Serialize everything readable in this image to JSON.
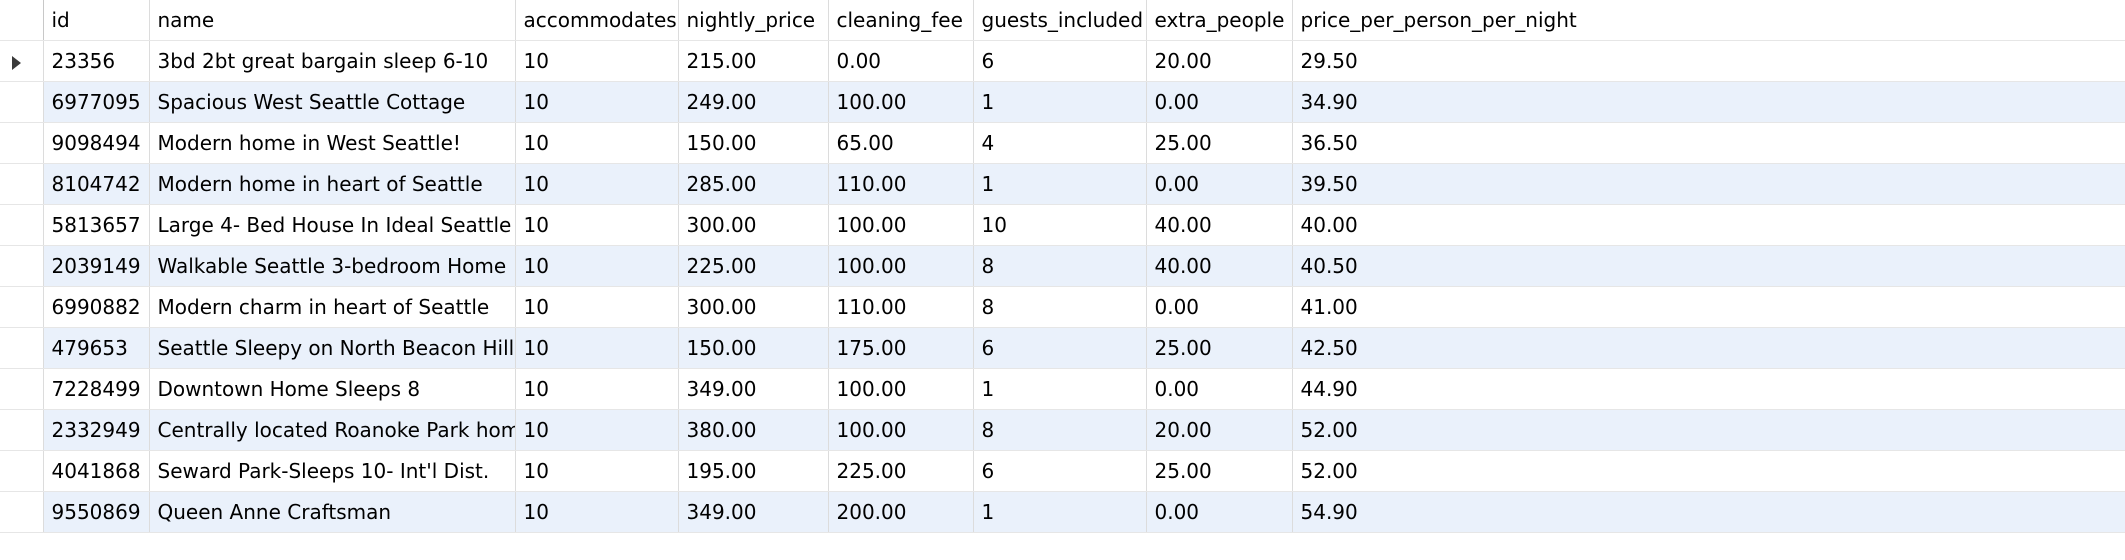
{
  "columns": [
    {
      "key": "id",
      "label": "id"
    },
    {
      "key": "name",
      "label": "name"
    },
    {
      "key": "accommodates",
      "label": "accommodates"
    },
    {
      "key": "nightly_price",
      "label": "nightly_price"
    },
    {
      "key": "cleaning_fee",
      "label": "cleaning_fee"
    },
    {
      "key": "guests_included",
      "label": "guests_included"
    },
    {
      "key": "extra_people",
      "label": "extra_people"
    },
    {
      "key": "price_per_person_per_night",
      "label": "price_per_person_per_night"
    }
  ],
  "current_row_index": 0,
  "rows": [
    {
      "id": "23356",
      "name": "3bd 2bt great bargain  sleep 6-10",
      "accommodates": "10",
      "nightly_price": "215.00",
      "cleaning_fee": "0.00",
      "guests_included": "6",
      "extra_people": "20.00",
      "price_per_person_per_night": "29.50"
    },
    {
      "id": "6977095",
      "name": "Spacious West Seattle Cottage",
      "accommodates": "10",
      "nightly_price": "249.00",
      "cleaning_fee": "100.00",
      "guests_included": "1",
      "extra_people": "0.00",
      "price_per_person_per_night": "34.90"
    },
    {
      "id": "9098494",
      "name": "Modern home in West Seattle!",
      "accommodates": "10",
      "nightly_price": "150.00",
      "cleaning_fee": "65.00",
      "guests_included": "4",
      "extra_people": "25.00",
      "price_per_person_per_night": "36.50"
    },
    {
      "id": "8104742",
      "name": "Modern home in heart of Seattle",
      "accommodates": "10",
      "nightly_price": "285.00",
      "cleaning_fee": "110.00",
      "guests_included": "1",
      "extra_people": "0.00",
      "price_per_person_per_night": "39.50"
    },
    {
      "id": "5813657",
      "name": "Large 4- Bed House In Ideal Seattle",
      "accommodates": "10",
      "nightly_price": "300.00",
      "cleaning_fee": "100.00",
      "guests_included": "10",
      "extra_people": "40.00",
      "price_per_person_per_night": "40.00"
    },
    {
      "id": "2039149",
      "name": "Walkable Seattle 3-bedroom Home",
      "accommodates": "10",
      "nightly_price": "225.00",
      "cleaning_fee": "100.00",
      "guests_included": "8",
      "extra_people": "40.00",
      "price_per_person_per_night": "40.50"
    },
    {
      "id": "6990882",
      "name": "Modern charm in heart of Seattle",
      "accommodates": "10",
      "nightly_price": "300.00",
      "cleaning_fee": "110.00",
      "guests_included": "8",
      "extra_people": "0.00",
      "price_per_person_per_night": "41.00"
    },
    {
      "id": "479653",
      "name": "Seattle Sleepy on North Beacon Hill",
      "accommodates": "10",
      "nightly_price": "150.00",
      "cleaning_fee": "175.00",
      "guests_included": "6",
      "extra_people": "25.00",
      "price_per_person_per_night": "42.50"
    },
    {
      "id": "7228499",
      "name": "Downtown Home Sleeps 8",
      "accommodates": "10",
      "nightly_price": "349.00",
      "cleaning_fee": "100.00",
      "guests_included": "1",
      "extra_people": "0.00",
      "price_per_person_per_night": "44.90"
    },
    {
      "id": "2332949",
      "name": "Centrally located Roanoke Park home",
      "accommodates": "10",
      "nightly_price": "380.00",
      "cleaning_fee": "100.00",
      "guests_included": "8",
      "extra_people": "20.00",
      "price_per_person_per_night": "52.00"
    },
    {
      "id": "4041868",
      "name": "Seward Park-Sleeps 10- Int'l Dist.",
      "accommodates": "10",
      "nightly_price": "195.00",
      "cleaning_fee": "225.00",
      "guests_included": "6",
      "extra_people": "25.00",
      "price_per_person_per_night": "52.00"
    },
    {
      "id": "9550869",
      "name": "Queen Anne Craftsman",
      "accommodates": "10",
      "nightly_price": "349.00",
      "cleaning_fee": "200.00",
      "guests_included": "1",
      "extra_people": "0.00",
      "price_per_person_per_night": "54.90"
    }
  ]
}
